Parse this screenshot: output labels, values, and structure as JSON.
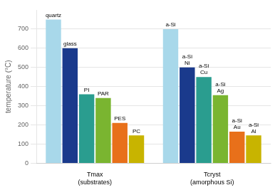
{
  "chart_data": {
    "type": "bar",
    "ylabel": "temperature (°C)",
    "categories": [
      [
        "Tmax",
        "(substrates)"
      ],
      [
        "Tcryst",
        "(amorphous Si)"
      ]
    ],
    "series": [
      {
        "color": "#a8d8ea",
        "values": [
          750,
          700
        ],
        "labels": [
          [
            "quartz"
          ],
          [
            "a-Si"
          ]
        ]
      },
      {
        "color": "#1a3a8c",
        "values": [
          600,
          500
        ],
        "labels": [
          [
            "glass"
          ],
          [
            "a-Si",
            "Ni"
          ]
        ]
      },
      {
        "color": "#2a9d8f",
        "values": [
          360,
          450
        ],
        "labels": [
          [
            "PI"
          ],
          [
            "a-Si",
            "Cu"
          ]
        ]
      },
      {
        "color": "#7ab530",
        "values": [
          340,
          355
        ],
        "labels": [
          [
            "PAR"
          ],
          [
            "a-Si",
            "Ag"
          ]
        ]
      },
      {
        "color": "#e8701a",
        "values": [
          210,
          165
        ],
        "labels": [
          [
            "PES"
          ],
          [
            "a-Si",
            "Au"
          ]
        ]
      },
      {
        "color": "#c8b400",
        "values": [
          145,
          145
        ],
        "labels": [
          [
            "PC"
          ],
          [
            "a-Si",
            "Al"
          ]
        ]
      }
    ],
    "ylim": [
      0,
      800
    ],
    "yticks": [
      0,
      100,
      200,
      300,
      400,
      500,
      600,
      700
    ],
    "grid": true
  }
}
